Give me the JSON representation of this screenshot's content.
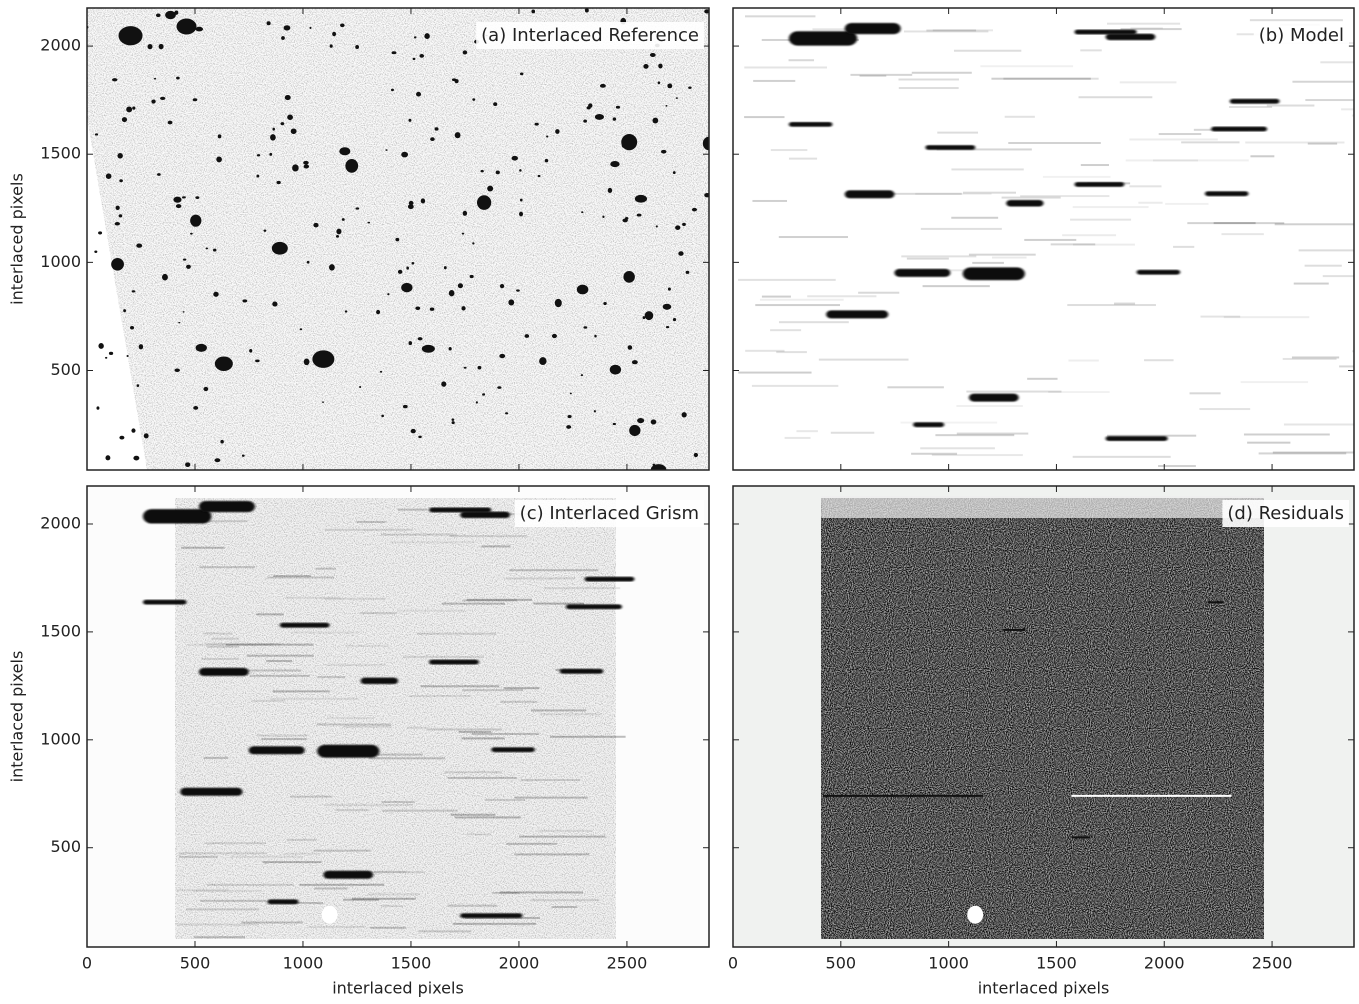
{
  "chart_data": [
    {
      "type": "image",
      "title": "(a) Interlaced Reference",
      "ylabel": "interlaced pixels",
      "xlim": [
        0,
        2880
      ],
      "ylim": [
        40,
        2176
      ],
      "xticks": [
        0,
        500,
        1000,
        1500,
        2000,
        2500
      ],
      "yticks": [
        500,
        1000,
        1500,
        2000
      ]
    },
    {
      "type": "image",
      "title": "(b) Model",
      "xlim": [
        0,
        2880
      ],
      "ylim": [
        40,
        2176
      ],
      "xticks": [
        0,
        500,
        1000,
        1500,
        2000,
        2500
      ],
      "yticks": [
        500,
        1000,
        1500,
        2000
      ]
    },
    {
      "type": "image",
      "title": "(c) Interlaced Grism",
      "xlabel": "interlaced pixels",
      "ylabel": "interlaced pixels",
      "xlim": [
        0,
        2880
      ],
      "ylim": [
        40,
        2176
      ],
      "xticks": [
        0,
        500,
        1000,
        1500,
        2000,
        2500
      ],
      "yticks": [
        500,
        1000,
        1500,
        2000
      ]
    },
    {
      "type": "image",
      "title": "(d) Residuals",
      "xlabel": "interlaced pixels",
      "xlim": [
        0,
        2880
      ],
      "ylim": [
        40,
        2176
      ],
      "xticks": [
        0,
        500,
        1000,
        1500,
        2000,
        2500
      ],
      "yticks": [
        500,
        1000,
        1500,
        2000
      ]
    }
  ]
}
